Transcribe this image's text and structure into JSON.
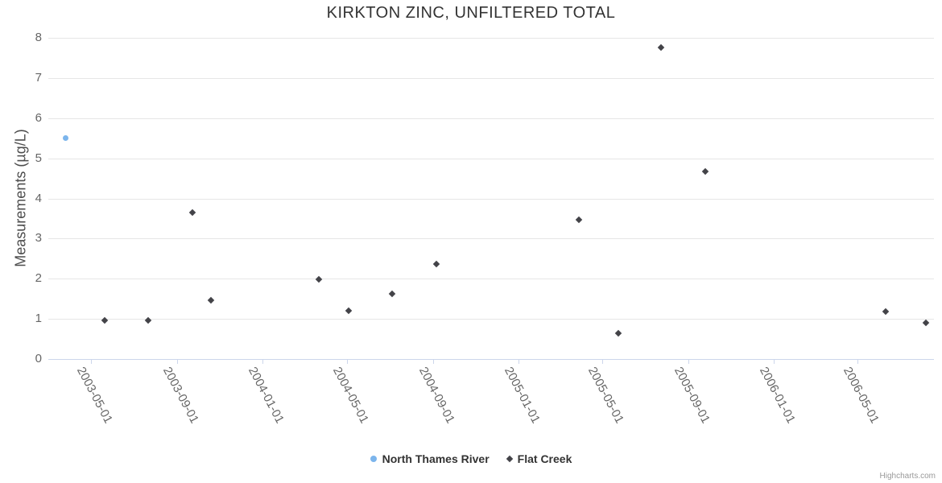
{
  "chart_data": {
    "type": "scatter",
    "title": "KIRKTON ZINC, UNFILTERED TOTAL",
    "xlabel": "",
    "ylabel": "Measurements (µg/L)",
    "x_type": "datetime",
    "x_range": [
      "2003-03-01",
      "2006-08-18"
    ],
    "ylim": [
      0,
      8
    ],
    "y_ticks": [
      0,
      1,
      2,
      3,
      4,
      5,
      6,
      7,
      8
    ],
    "x_ticks": [
      "2003-05-01",
      "2003-09-01",
      "2004-01-01",
      "2004-05-01",
      "2004-09-01",
      "2005-01-01",
      "2005-05-01",
      "2005-09-01",
      "2006-01-01",
      "2006-05-01"
    ],
    "grid": "horizontal",
    "legend_position": "bottom-center",
    "background_color": "#ffffff",
    "gridline_color": "#e6e6e6",
    "axis_line_color": "#ccd6eb",
    "series": [
      {
        "name": "North Thames River",
        "color": "#7cb5ec",
        "marker": "circle",
        "points": [
          {
            "date": "2003-03-26",
            "value": 5.5
          }
        ]
      },
      {
        "name": "Flat Creek",
        "color": "#434348",
        "marker": "diamond",
        "points": [
          {
            "date": "2003-05-20",
            "value": 0.97
          },
          {
            "date": "2003-07-22",
            "value": 0.97
          },
          {
            "date": "2003-09-23",
            "value": 3.65
          },
          {
            "date": "2003-10-20",
            "value": 1.47
          },
          {
            "date": "2004-03-22",
            "value": 1.98
          },
          {
            "date": "2004-05-03",
            "value": 1.2
          },
          {
            "date": "2004-07-05",
            "value": 1.62
          },
          {
            "date": "2004-09-06",
            "value": 2.36
          },
          {
            "date": "2005-03-28",
            "value": 3.47
          },
          {
            "date": "2005-05-24",
            "value": 0.65
          },
          {
            "date": "2005-07-24",
            "value": 7.76
          },
          {
            "date": "2005-09-25",
            "value": 4.68
          },
          {
            "date": "2006-06-10",
            "value": 1.18
          },
          {
            "date": "2006-08-06",
            "value": 0.9
          }
        ]
      }
    ]
  },
  "credit": {
    "label": "Highcharts.com"
  }
}
